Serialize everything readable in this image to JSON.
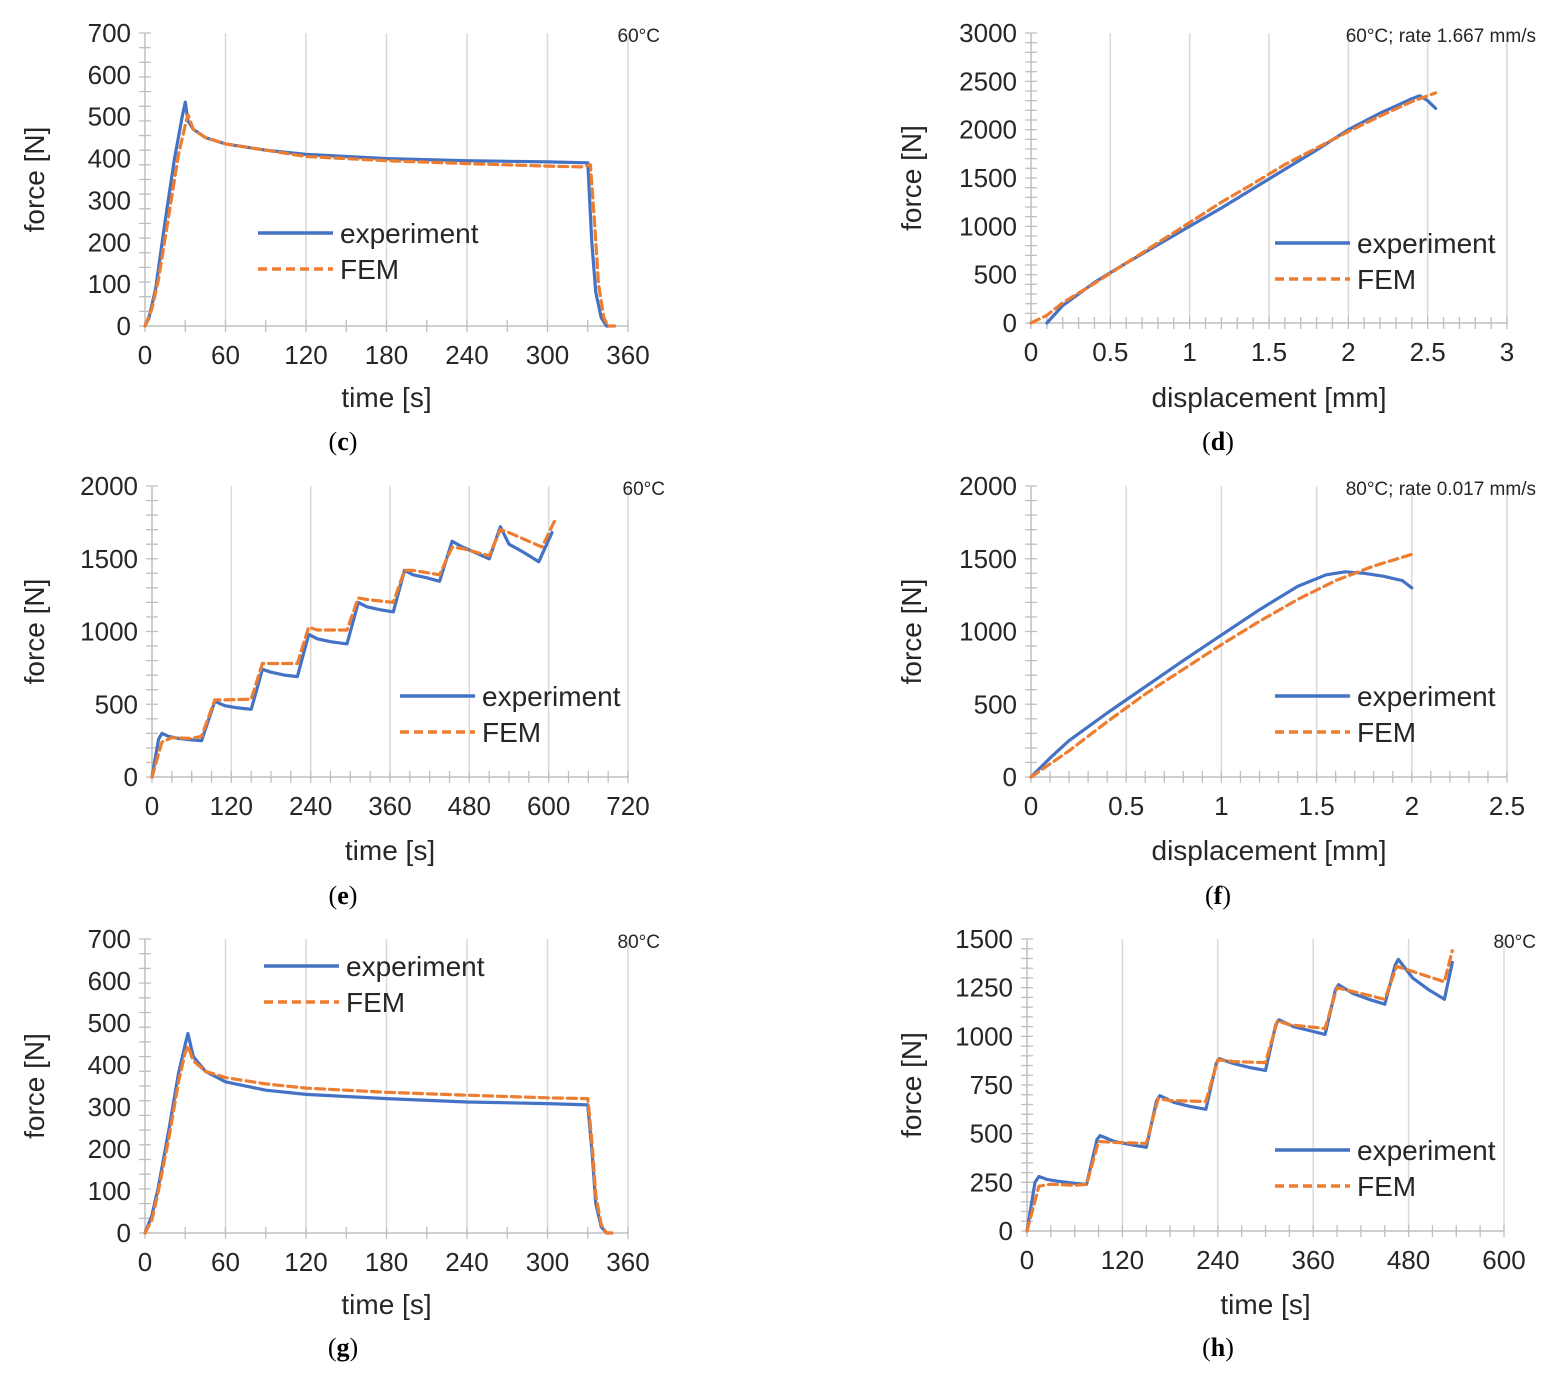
{
  "colors": {
    "experiment": "#4472c4",
    "fem": "#ed7d31"
  },
  "chart_data": [
    {
      "type": "line",
      "panel": "(c)",
      "panel_letter": "c",
      "condition": "60°C",
      "xlabel": "time [s]",
      "ylabel": "force [N]",
      "xlim": [
        0,
        360
      ],
      "ylim": [
        0,
        700
      ],
      "xticks": [
        0,
        60,
        120,
        180,
        240,
        300,
        360
      ],
      "yticks": [
        0,
        100,
        200,
        300,
        400,
        500,
        600,
        700
      ],
      "xminor": 12,
      "yminor": 20,
      "legend_position": "center",
      "series": [
        {
          "name": "experiment",
          "x": [
            0,
            3,
            8,
            15,
            22,
            28,
            30,
            32,
            36,
            45,
            60,
            90,
            120,
            180,
            240,
            300,
            330,
            333,
            336,
            340,
            344,
            346
          ],
          "y": [
            0,
            20,
            90,
            250,
            400,
            505,
            535,
            490,
            470,
            450,
            435,
            420,
            410,
            400,
            395,
            392,
            390,
            200,
            80,
            20,
            0,
            0
          ]
        },
        {
          "name": "FEM",
          "x": [
            0,
            5,
            10,
            18,
            25,
            30,
            32,
            36,
            45,
            60,
            90,
            120,
            180,
            240,
            300,
            325,
            332,
            335,
            338,
            342,
            345,
            350
          ],
          "y": [
            0,
            40,
            110,
            270,
            410,
            480,
            505,
            470,
            450,
            435,
            420,
            405,
            395,
            388,
            382,
            380,
            385,
            250,
            100,
            20,
            0,
            0
          ]
        }
      ]
    },
    {
      "type": "line",
      "panel": "(d)",
      "panel_letter": "d",
      "condition": "60°C; rate 1.667 mm/s",
      "xlabel": "displacement [mm]",
      "ylabel": "force [N]",
      "xlim": [
        0,
        3
      ],
      "ylim": [
        0,
        3000
      ],
      "xticks": [
        0,
        0.5,
        1,
        1.5,
        2,
        2.5,
        3
      ],
      "yticks": [
        0,
        500,
        1000,
        1500,
        2000,
        2500,
        3000
      ],
      "xminor": 30,
      "yminor": 30,
      "legend_position": "lower-right",
      "series": [
        {
          "name": "experiment",
          "x": [
            0.1,
            0.2,
            0.4,
            0.6,
            0.8,
            1.0,
            1.2,
            1.4,
            1.6,
            1.8,
            2.0,
            2.2,
            2.4,
            2.45,
            2.5,
            2.55
          ],
          "y": [
            0,
            180,
            420,
            620,
            810,
            1000,
            1190,
            1390,
            1590,
            1790,
            2000,
            2170,
            2320,
            2350,
            2300,
            2220
          ]
        },
        {
          "name": "FEM",
          "x": [
            0,
            0.1,
            0.2,
            0.4,
            0.6,
            0.8,
            1.0,
            1.2,
            1.4,
            1.6,
            1.8,
            2.0,
            2.2,
            2.4,
            2.55
          ],
          "y": [
            0,
            80,
            210,
            410,
            620,
            830,
            1040,
            1250,
            1440,
            1640,
            1810,
            1980,
            2140,
            2290,
            2380
          ]
        }
      ]
    },
    {
      "type": "line",
      "panel": "(e)",
      "panel_letter": "e",
      "condition": "60°C",
      "xlabel": "time [s]",
      "ylabel": "force [N]",
      "xlim": [
        0,
        720
      ],
      "ylim": [
        0,
        2000
      ],
      "xticks": [
        0,
        120,
        240,
        360,
        480,
        600,
        720
      ],
      "yticks": [
        0,
        500,
        1000,
        1500,
        2000
      ],
      "xminor": 24,
      "yminor": 20,
      "legend_position": "lower-right",
      "series": [
        {
          "name": "experiment",
          "x": [
            0,
            10,
            15,
            25,
            40,
            60,
            75,
            95,
            110,
            130,
            150,
            167,
            180,
            200,
            220,
            237,
            250,
            270,
            295,
            312,
            325,
            345,
            365,
            382,
            395,
            415,
            435,
            454,
            470,
            490,
            510,
            527,
            540,
            560,
            585,
            605
          ],
          "y": [
            0,
            260,
            300,
            280,
            265,
            255,
            250,
            520,
            490,
            475,
            465,
            740,
            720,
            700,
            690,
            980,
            950,
            930,
            915,
            1200,
            1170,
            1150,
            1135,
            1420,
            1390,
            1370,
            1345,
            1620,
            1580,
            1540,
            1500,
            1720,
            1600,
            1550,
            1480,
            1680
          ]
        },
        {
          "name": "FEM",
          "x": [
            0,
            15,
            30,
            60,
            75,
            95,
            110,
            150,
            167,
            180,
            220,
            237,
            250,
            295,
            312,
            325,
            365,
            382,
            395,
            435,
            454,
            470,
            510,
            527,
            540,
            590,
            610
          ],
          "y": [
            0,
            240,
            270,
            265,
            280,
            530,
            530,
            535,
            780,
            780,
            780,
            1030,
            1010,
            1010,
            1230,
            1220,
            1200,
            1420,
            1420,
            1390,
            1580,
            1570,
            1520,
            1700,
            1680,
            1580,
            1770
          ]
        }
      ]
    },
    {
      "type": "line",
      "panel": "(f)",
      "panel_letter": "f",
      "condition": "80°C; rate 0.017 mm/s",
      "xlabel": "displacement [mm]",
      "ylabel": "force [N]",
      "xlim": [
        0,
        2.5
      ],
      "ylim": [
        0,
        2000
      ],
      "xticks": [
        0,
        0.5,
        1,
        1.5,
        2,
        2.5
      ],
      "yticks": [
        0,
        500,
        1000,
        1500,
        2000
      ],
      "xminor": 25,
      "yminor": 20,
      "legend_position": "lower-right",
      "series": [
        {
          "name": "experiment",
          "x": [
            0,
            0.1,
            0.2,
            0.4,
            0.6,
            0.8,
            1.0,
            1.2,
            1.4,
            1.55,
            1.65,
            1.75,
            1.85,
            1.95,
            2.0
          ],
          "y": [
            0,
            130,
            250,
            440,
            620,
            800,
            975,
            1150,
            1310,
            1390,
            1410,
            1400,
            1380,
            1350,
            1300
          ]
        },
        {
          "name": "FEM",
          "x": [
            0,
            0.2,
            0.4,
            0.6,
            0.8,
            1.0,
            1.2,
            1.4,
            1.6,
            1.8,
            2.0
          ],
          "y": [
            0,
            180,
            380,
            570,
            740,
            910,
            1070,
            1220,
            1350,
            1450,
            1530
          ]
        }
      ]
    },
    {
      "type": "line",
      "panel": "(g)",
      "panel_letter": "g",
      "condition": "80°C",
      "xlabel": "time [s]",
      "ylabel": "force [N]",
      "xlim": [
        0,
        360
      ],
      "ylim": [
        0,
        700
      ],
      "xticks": [
        0,
        60,
        120,
        180,
        240,
        300,
        360
      ],
      "yticks": [
        0,
        100,
        200,
        300,
        400,
        500,
        600,
        700
      ],
      "xminor": 12,
      "yminor": 20,
      "legend_position": "top-center",
      "series": [
        {
          "name": "experiment",
          "x": [
            0,
            5,
            10,
            18,
            25,
            30,
            32,
            36,
            45,
            60,
            90,
            120,
            180,
            240,
            300,
            330,
            333,
            336,
            340,
            344,
            347
          ],
          "y": [
            0,
            40,
            110,
            250,
            380,
            450,
            475,
            420,
            385,
            360,
            340,
            330,
            320,
            312,
            308,
            305,
            200,
            70,
            15,
            0,
            0
          ]
        },
        {
          "name": "FEM",
          "x": [
            0,
            5,
            10,
            18,
            25,
            30,
            32,
            36,
            45,
            60,
            90,
            120,
            180,
            240,
            300,
            330,
            333,
            336,
            340,
            344,
            348
          ],
          "y": [
            0,
            30,
            100,
            230,
            360,
            430,
            445,
            410,
            385,
            370,
            355,
            345,
            335,
            328,
            322,
            320,
            220,
            90,
            20,
            0,
            0
          ]
        }
      ]
    },
    {
      "type": "line",
      "panel": "(h)",
      "panel_letter": "h",
      "condition": "80°C",
      "xlabel": "time [s]",
      "ylabel": "force [N]",
      "xlim": [
        0,
        600
      ],
      "ylim": [
        0,
        1500
      ],
      "xticks": [
        0,
        120,
        240,
        360,
        480,
        600
      ],
      "yticks": [
        0,
        250,
        500,
        750,
        1000,
        1250,
        1500
      ],
      "xminor": 20,
      "yminor": 30,
      "legend_position": "lower-right",
      "series": [
        {
          "name": "experiment",
          "x": [
            0,
            10,
            15,
            25,
            40,
            60,
            75,
            88,
            92,
            110,
            135,
            150,
            163,
            167,
            185,
            205,
            225,
            238,
            242,
            260,
            280,
            300,
            313,
            317,
            335,
            355,
            375,
            388,
            392,
            410,
            430,
            450,
            463,
            467,
            485,
            505,
            525,
            535
          ],
          "y": [
            0,
            250,
            280,
            265,
            255,
            245,
            240,
            470,
            490,
            460,
            440,
            430,
            670,
            695,
            660,
            640,
            625,
            860,
            885,
            860,
            840,
            825,
            1060,
            1085,
            1050,
            1030,
            1010,
            1240,
            1265,
            1220,
            1190,
            1165,
            1365,
            1395,
            1300,
            1240,
            1190,
            1380
          ]
        },
        {
          "name": "FEM",
          "x": [
            0,
            15,
            30,
            60,
            75,
            90,
            110,
            150,
            165,
            180,
            225,
            240,
            260,
            300,
            315,
            330,
            375,
            390,
            410,
            450,
            465,
            480,
            525,
            535
          ],
          "y": [
            0,
            230,
            240,
            235,
            240,
            460,
            455,
            450,
            680,
            670,
            665,
            880,
            870,
            865,
            1080,
            1060,
            1040,
            1250,
            1230,
            1190,
            1360,
            1340,
            1280,
            1440
          ]
        }
      ]
    }
  ]
}
